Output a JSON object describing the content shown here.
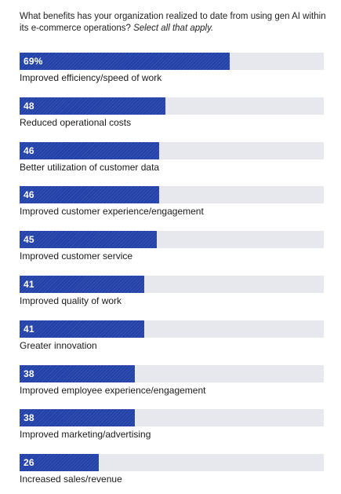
{
  "question": {
    "text": "What benefits has your organization realized to date from using gen AI within its e-commerce operations?",
    "instruction": "Select all that apply."
  },
  "colors": {
    "bar": "#2140a8",
    "track": "#e6e8ee",
    "value_text": "#ffffff"
  },
  "chart_data": {
    "type": "bar",
    "orientation": "horizontal",
    "title": "What benefits has your organization realized to date from using gen AI within its e-commerce operations? Select all that apply.",
    "unit": "%",
    "xlim": [
      0,
      100
    ],
    "grid": false,
    "categories": [
      "Improved efficiency/speed of work",
      "Reduced operational costs",
      "Better utilization of customer data",
      "Improved customer experience/engagement",
      "Improved customer service",
      "Improved quality of work",
      "Greater innovation",
      "Improved employee experience/engagement",
      "Improved marketing/advertising",
      "Increased sales/revenue"
    ],
    "values": [
      69,
      48,
      46,
      46,
      45,
      41,
      41,
      38,
      38,
      26
    ],
    "value_labels": [
      "69%",
      "48",
      "46",
      "46",
      "45",
      "41",
      "41",
      "38",
      "38",
      "26"
    ]
  }
}
